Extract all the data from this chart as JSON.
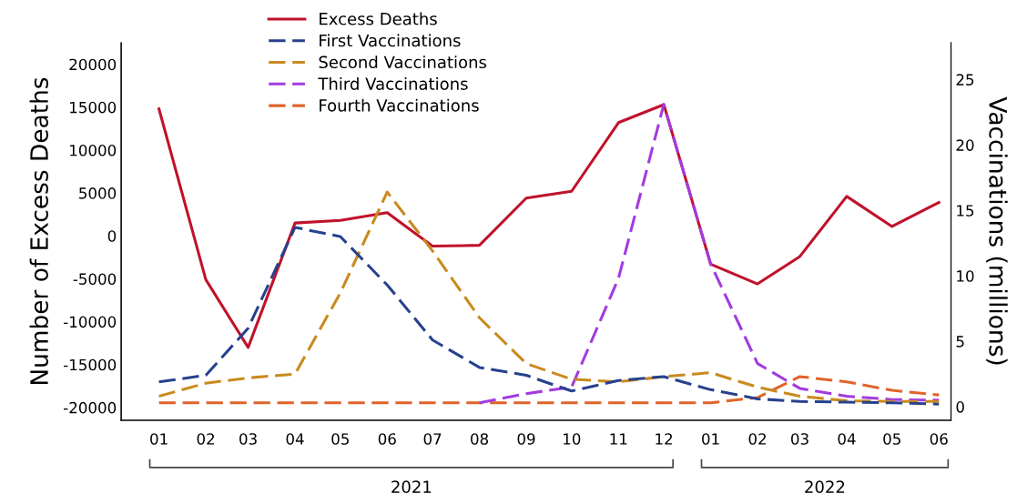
{
  "chart_data": {
    "type": "line",
    "x": [
      "2021-01",
      "2021-02",
      "2021-03",
      "2021-04",
      "2021-05",
      "2021-06",
      "2021-07",
      "2021-08",
      "2021-09",
      "2021-10",
      "2021-11",
      "2021-12",
      "2022-01",
      "2022-02",
      "2022-03",
      "2022-04",
      "2022-05",
      "2022-06"
    ],
    "ylabel": "Number of Excess Deaths",
    "y2label": "Vaccinations (millions)",
    "series": [
      {
        "name": "Excess Deaths",
        "color": "#c0122b",
        "line_style": "solid",
        "values": [
          14800,
          -5100,
          -13000,
          1500,
          1800,
          2700,
          -1200,
          -1100,
          4400,
          5200,
          13200,
          15300,
          -3300,
          -5600,
          -2400,
          4600,
          1100,
          3900
        ]
      },
      {
        "name": "First Vaccinations",
        "color": "#27418e",
        "line_style": "dashed",
        "axis": "y2",
        "values": [
          1.9,
          2.4,
          6.0,
          13.7,
          13.0,
          9.3,
          5.1,
          3.0,
          2.4,
          1.2,
          2.0,
          2.3,
          1.3,
          0.6,
          0.4,
          0.35,
          0.3,
          0.2
        ]
      },
      {
        "name": "Second Vaccinations",
        "color": "#c98a1f",
        "line_style": "dashed",
        "axis": "y2",
        "values": [
          0.8,
          1.8,
          2.2,
          2.5,
          8.7,
          16.4,
          11.9,
          6.8,
          3.3,
          2.1,
          1.9,
          2.3,
          2.6,
          1.5,
          0.8,
          0.45,
          0.4,
          0.4
        ]
      },
      {
        "name": "Third Vaccinations",
        "color": "#a23be0",
        "line_style": "dashed",
        "axis": "y2",
        "values": [
          null,
          null,
          null,
          null,
          null,
          null,
          null,
          0.3,
          1.0,
          1.5,
          9.8,
          23.1,
          10.9,
          3.3,
          1.4,
          0.8,
          0.55,
          0.5
        ]
      },
      {
        "name": "Fourth Vaccinations",
        "color": "#e0642a",
        "line_style": "dashed",
        "axis": "y2",
        "values": [
          0.3,
          0.3,
          0.3,
          0.3,
          0.3,
          0.3,
          0.3,
          0.3,
          0.3,
          0.3,
          0.3,
          0.3,
          0.3,
          0.7,
          2.3,
          1.9,
          1.25,
          0.9
        ]
      }
    ],
    "xlim": [
      "2020-12-07",
      "2022-06-09"
    ],
    "xticks": [
      {
        "value": "2021-01",
        "label": "01"
      },
      {
        "value": "2021-02",
        "label": "02"
      },
      {
        "value": "2021-03",
        "label": "03"
      },
      {
        "value": "2021-04",
        "label": "04"
      },
      {
        "value": "2021-05",
        "label": "05"
      },
      {
        "value": "2021-06",
        "label": "06"
      },
      {
        "value": "2021-07",
        "label": "07"
      },
      {
        "value": "2021-08",
        "label": "08"
      },
      {
        "value": "2021-09",
        "label": "09"
      },
      {
        "value": "2021-10",
        "label": "10"
      },
      {
        "value": "2021-11",
        "label": "11"
      },
      {
        "value": "2021-12",
        "label": "12"
      },
      {
        "value": "2022-01",
        "label": "01"
      },
      {
        "value": "2022-02",
        "label": "02"
      },
      {
        "value": "2022-03",
        "label": "03"
      },
      {
        "value": "2022-04",
        "label": "04"
      },
      {
        "value": "2022-05",
        "label": "05"
      },
      {
        "value": "2022-06",
        "label": "06"
      }
    ],
    "ylim": [
      -21500,
      22500
    ],
    "yticks": [
      -20000,
      -15000,
      -10000,
      -5000,
      0,
      5000,
      10000,
      15000,
      20000
    ],
    "y2lim": [
      -1.04,
      27.8
    ],
    "y2ticks": [
      0,
      5,
      10,
      15,
      20,
      25
    ],
    "annotations": [
      "2021",
      "2022"
    ],
    "legend": "top left",
    "grid": false
  }
}
